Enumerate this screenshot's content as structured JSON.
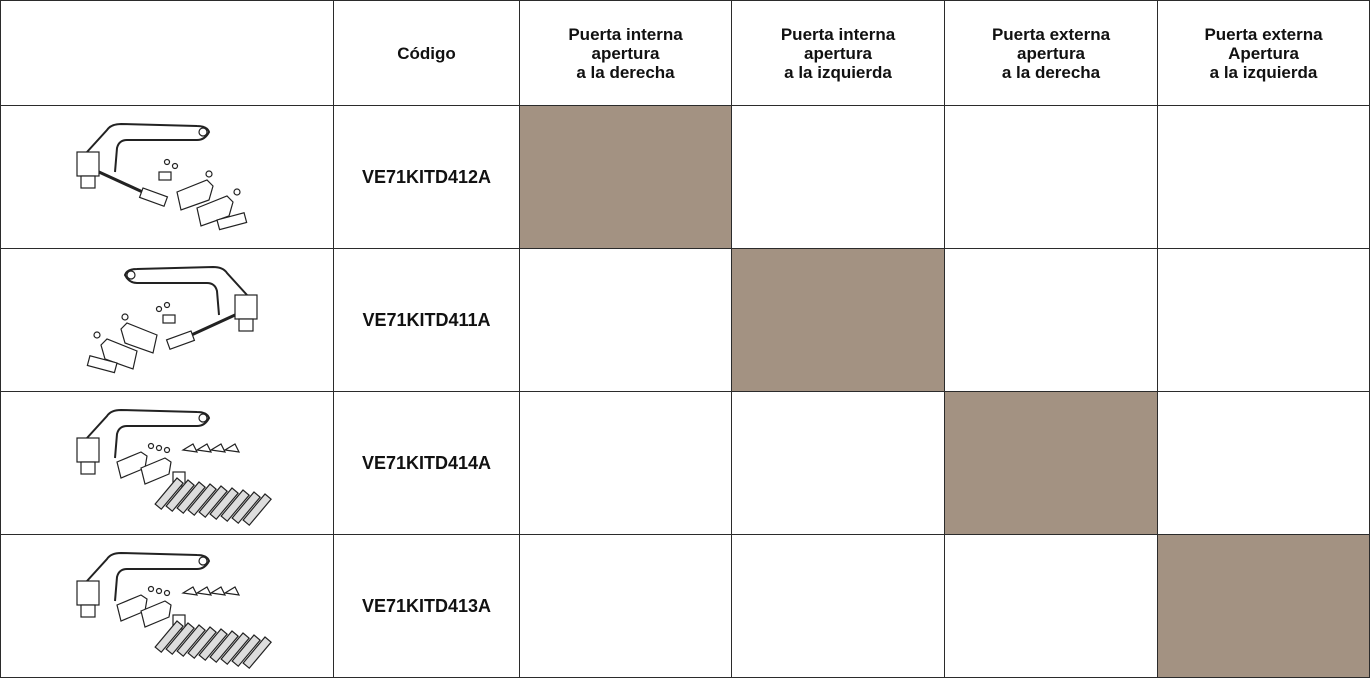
{
  "table": {
    "header": [
      [
        "Código"
      ],
      [
        "Puerta interna",
        "apertura",
        "a la derecha"
      ],
      [
        "Puerta interna",
        "apertura",
        "a la izquierda"
      ],
      [
        "Puerta externa",
        "apertura",
        "a la derecha"
      ],
      [
        "Puerta externa",
        "Apertura",
        "a la izquierda"
      ]
    ],
    "rows": [
      {
        "code": "VE71KITD412A"
      },
      {
        "code": "VE71KITD411A"
      },
      {
        "code": "VE71KITD414A"
      },
      {
        "code": "VE71KITD413A"
      }
    ]
  }
}
